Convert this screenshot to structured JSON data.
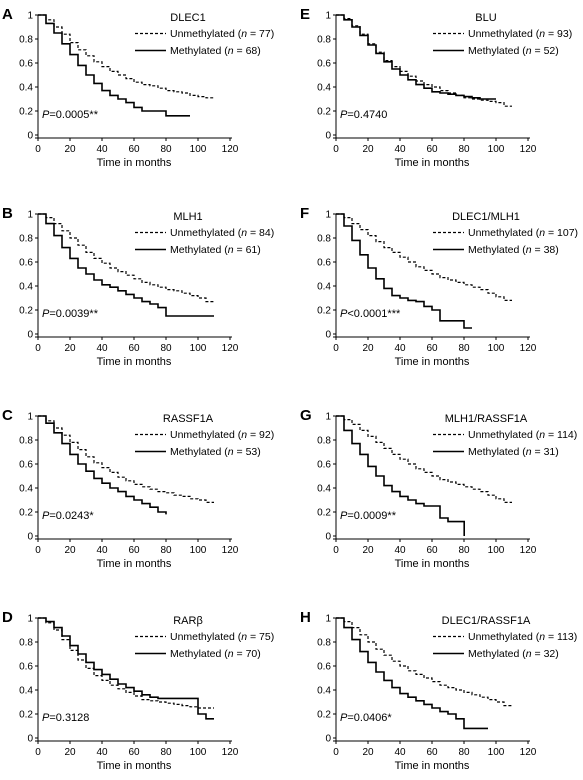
{
  "chart_data": [
    {
      "type": "line",
      "panel": "A",
      "gene": "DLEC1",
      "xlabel": "Time in months",
      "ylabel": "",
      "xlim": [
        0,
        120
      ],
      "ylim": [
        0,
        1
      ],
      "xticks": [
        "0",
        "20",
        "40",
        "60",
        "80",
        "100",
        "120"
      ],
      "yticks": [
        "0",
        "0.2",
        "0.4",
        "0.6",
        "0.8",
        "1"
      ],
      "legend": "top-right",
      "series": [
        {
          "name": "Unmethylated",
          "n": "77",
          "style": "dashed",
          "x": [
            0,
            5,
            10,
            15,
            20,
            25,
            30,
            35,
            40,
            45,
            50,
            55,
            60,
            65,
            70,
            75,
            80,
            85,
            90,
            95,
            100,
            105,
            110
          ],
          "y": [
            1,
            0.96,
            0.9,
            0.84,
            0.77,
            0.71,
            0.66,
            0.61,
            0.57,
            0.53,
            0.5,
            0.47,
            0.44,
            0.42,
            0.41,
            0.39,
            0.37,
            0.36,
            0.35,
            0.33,
            0.32,
            0.31,
            0.31
          ]
        },
        {
          "name": "Methylated",
          "n": "68",
          "style": "solid",
          "x": [
            0,
            5,
            10,
            15,
            20,
            25,
            30,
            35,
            40,
            45,
            50,
            55,
            60,
            65,
            70,
            75,
            80,
            85,
            90,
            95
          ],
          "y": [
            1,
            0.93,
            0.85,
            0.76,
            0.67,
            0.58,
            0.5,
            0.43,
            0.37,
            0.33,
            0.3,
            0.27,
            0.23,
            0.2,
            0.2,
            0.2,
            0.16,
            0.16,
            0.16,
            0.16
          ]
        }
      ],
      "pvalue": {
        "prefix": "P",
        "rest": "=0.0005**"
      }
    },
    {
      "type": "line",
      "panel": "B",
      "gene": "MLH1",
      "xlabel": "Time in months",
      "ylabel": "",
      "xlim": [
        0,
        120
      ],
      "ylim": [
        0,
        1
      ],
      "xticks": [
        "0",
        "20",
        "40",
        "60",
        "80",
        "100",
        "120"
      ],
      "yticks": [
        "0",
        "0.2",
        "0.4",
        "0.6",
        "0.8",
        "1"
      ],
      "legend": "top-right",
      "series": [
        {
          "name": "Unmethylated",
          "n": "84",
          "style": "dashed",
          "x": [
            0,
            5,
            10,
            15,
            20,
            25,
            30,
            35,
            40,
            45,
            50,
            55,
            60,
            65,
            70,
            75,
            80,
            85,
            90,
            95,
            100,
            105,
            110
          ],
          "y": [
            1,
            0.97,
            0.92,
            0.86,
            0.8,
            0.74,
            0.68,
            0.63,
            0.59,
            0.55,
            0.52,
            0.49,
            0.46,
            0.43,
            0.41,
            0.39,
            0.37,
            0.36,
            0.34,
            0.32,
            0.3,
            0.27,
            0.27
          ]
        },
        {
          "name": "Methylated",
          "n": "61",
          "style": "solid",
          "x": [
            0,
            5,
            10,
            15,
            20,
            25,
            30,
            35,
            40,
            45,
            50,
            55,
            60,
            65,
            70,
            75,
            80,
            85,
            90,
            95,
            100,
            105,
            110
          ],
          "y": [
            1,
            0.92,
            0.82,
            0.72,
            0.63,
            0.55,
            0.5,
            0.45,
            0.41,
            0.39,
            0.36,
            0.33,
            0.3,
            0.27,
            0.25,
            0.22,
            0.15,
            0.15,
            0.15,
            0.15,
            0.15,
            0.15,
            0.15
          ]
        }
      ],
      "pvalue": {
        "prefix": "P",
        "rest": "=0.0039**"
      }
    },
    {
      "type": "line",
      "panel": "C",
      "gene": "RASSF1A",
      "xlabel": "Time in months",
      "ylabel": "",
      "xlim": [
        0,
        120
      ],
      "ylim": [
        0,
        1
      ],
      "xticks": [
        "0",
        "20",
        "40",
        "60",
        "80",
        "100",
        "120"
      ],
      "yticks": [
        "0",
        "0.2",
        "0.4",
        "0.6",
        "0.8",
        "1"
      ],
      "legend": "top-right",
      "series": [
        {
          "name": "Unmethylated",
          "n": "92",
          "style": "dashed",
          "x": [
            0,
            5,
            10,
            15,
            20,
            25,
            30,
            35,
            40,
            45,
            50,
            55,
            60,
            65,
            70,
            75,
            80,
            85,
            90,
            95,
            100,
            105,
            110
          ],
          "y": [
            1,
            0.96,
            0.9,
            0.84,
            0.78,
            0.72,
            0.66,
            0.61,
            0.57,
            0.53,
            0.49,
            0.46,
            0.43,
            0.41,
            0.39,
            0.37,
            0.36,
            0.34,
            0.33,
            0.31,
            0.3,
            0.28,
            0.28
          ]
        },
        {
          "name": "Methylated",
          "n": "53",
          "style": "solid",
          "x": [
            0,
            5,
            10,
            15,
            20,
            25,
            30,
            35,
            40,
            45,
            50,
            55,
            60,
            65,
            70,
            75,
            80
          ],
          "y": [
            1,
            0.94,
            0.86,
            0.77,
            0.68,
            0.6,
            0.54,
            0.48,
            0.44,
            0.4,
            0.37,
            0.33,
            0.3,
            0.27,
            0.24,
            0.2,
            0.18
          ]
        }
      ],
      "pvalue": {
        "prefix": "P",
        "rest": "=0.0243*"
      }
    },
    {
      "type": "line",
      "panel": "D",
      "gene": "RARβ",
      "xlabel": "Time in months",
      "ylabel": "",
      "xlim": [
        0,
        120
      ],
      "ylim": [
        0,
        1
      ],
      "xticks": [
        "0",
        "20",
        "40",
        "60",
        "80",
        "100",
        "120"
      ],
      "yticks": [
        "0",
        "0.2",
        "0.4",
        "0.6",
        "0.8",
        "1"
      ],
      "legend": "top-right",
      "series": [
        {
          "name": "Unmethylated",
          "n": "75",
          "style": "dashed",
          "x": [
            0,
            5,
            10,
            15,
            20,
            25,
            30,
            35,
            40,
            45,
            50,
            55,
            60,
            65,
            70,
            75,
            80,
            85,
            90,
            95,
            100,
            105,
            110
          ],
          "y": [
            1,
            0.96,
            0.9,
            0.82,
            0.73,
            0.65,
            0.58,
            0.52,
            0.48,
            0.44,
            0.41,
            0.38,
            0.35,
            0.32,
            0.31,
            0.3,
            0.29,
            0.28,
            0.27,
            0.26,
            0.25,
            0.25,
            0.25
          ]
        },
        {
          "name": "Methylated",
          "n": "70",
          "style": "solid",
          "x": [
            0,
            5,
            10,
            15,
            20,
            25,
            30,
            35,
            40,
            45,
            50,
            55,
            60,
            65,
            70,
            75,
            80,
            85,
            90,
            95,
            100,
            105,
            110
          ],
          "y": [
            1,
            0.97,
            0.92,
            0.85,
            0.77,
            0.7,
            0.63,
            0.57,
            0.53,
            0.49,
            0.45,
            0.42,
            0.39,
            0.36,
            0.34,
            0.33,
            0.33,
            0.33,
            0.33,
            0.33,
            0.2,
            0.16,
            0.16
          ]
        }
      ],
      "pvalue": {
        "prefix": "P",
        "rest": "=0.3128"
      }
    },
    {
      "type": "line",
      "panel": "E",
      "gene": "BLU",
      "xlabel": "Time in months",
      "ylabel": "",
      "xlim": [
        0,
        120
      ],
      "ylim": [
        0,
        1
      ],
      "xticks": [
        "0",
        "20",
        "40",
        "60",
        "80",
        "100",
        "120"
      ],
      "yticks": [
        "0",
        "0.2",
        "0.4",
        "0.6",
        "0.8",
        "1"
      ],
      "legend": "top-right",
      "series": [
        {
          "name": "Unmethylated",
          "n": "93",
          "style": "dashed",
          "x": [
            0,
            5,
            10,
            15,
            20,
            25,
            30,
            35,
            40,
            45,
            50,
            55,
            60,
            65,
            70,
            75,
            80,
            85,
            90,
            95,
            100,
            105,
            110
          ],
          "y": [
            1,
            0.97,
            0.91,
            0.84,
            0.76,
            0.69,
            0.62,
            0.57,
            0.53,
            0.49,
            0.45,
            0.42,
            0.4,
            0.37,
            0.35,
            0.33,
            0.31,
            0.3,
            0.29,
            0.28,
            0.27,
            0.24,
            0.24
          ]
        },
        {
          "name": "Methylated",
          "n": "52",
          "style": "solid",
          "x": [
            0,
            5,
            10,
            15,
            20,
            25,
            30,
            35,
            40,
            45,
            50,
            55,
            60,
            65,
            70,
            75,
            80,
            85,
            90,
            95,
            100
          ],
          "y": [
            1,
            0.96,
            0.9,
            0.83,
            0.75,
            0.68,
            0.61,
            0.55,
            0.5,
            0.46,
            0.42,
            0.39,
            0.36,
            0.35,
            0.34,
            0.33,
            0.32,
            0.31,
            0.3,
            0.3,
            0.3
          ]
        }
      ],
      "pvalue": {
        "prefix": "P",
        "rest": "=0.4740"
      }
    },
    {
      "type": "line",
      "panel": "F",
      "gene": "DLEC1/MLH1",
      "xlabel": "Time in months",
      "ylabel": "",
      "xlim": [
        0,
        120
      ],
      "ylim": [
        0,
        1
      ],
      "xticks": [
        "0",
        "20",
        "40",
        "60",
        "80",
        "100",
        "120"
      ],
      "yticks": [
        "0",
        "0.2",
        "0.4",
        "0.6",
        "0.8",
        "1"
      ],
      "legend": "top-right",
      "series": [
        {
          "name": "Unmethylated",
          "n": "107",
          "style": "dashed",
          "x": [
            0,
            5,
            10,
            15,
            20,
            25,
            30,
            35,
            40,
            45,
            50,
            55,
            60,
            65,
            70,
            75,
            80,
            85,
            90,
            95,
            100,
            105,
            110
          ],
          "y": [
            1,
            0.97,
            0.92,
            0.87,
            0.82,
            0.77,
            0.72,
            0.68,
            0.64,
            0.6,
            0.56,
            0.53,
            0.5,
            0.47,
            0.45,
            0.43,
            0.41,
            0.39,
            0.37,
            0.34,
            0.31,
            0.28,
            0.28
          ]
        },
        {
          "name": "Methylated",
          "n": "38",
          "style": "solid",
          "x": [
            0,
            5,
            10,
            15,
            20,
            25,
            30,
            35,
            40,
            45,
            50,
            55,
            60,
            65,
            70,
            75,
            80,
            85
          ],
          "y": [
            1,
            0.9,
            0.78,
            0.66,
            0.55,
            0.46,
            0.38,
            0.32,
            0.3,
            0.28,
            0.27,
            0.23,
            0.2,
            0.11,
            0.11,
            0.11,
            0.05,
            0.05
          ]
        }
      ],
      "pvalue": {
        "prefix": "P",
        "rest": "<0.0001***"
      }
    },
    {
      "type": "line",
      "panel": "G",
      "gene": "MLH1/RASSF1A",
      "xlabel": "Time in months",
      "ylabel": "",
      "xlim": [
        0,
        120
      ],
      "ylim": [
        0,
        1
      ],
      "xticks": [
        "0",
        "20",
        "40",
        "60",
        "80",
        "100",
        "120"
      ],
      "yticks": [
        "0",
        "0.2",
        "0.4",
        "0.6",
        "0.8",
        "1"
      ],
      "legend": "top-right",
      "series": [
        {
          "name": "Unmethylated",
          "n": "114",
          "style": "dashed",
          "x": [
            0,
            5,
            10,
            15,
            20,
            25,
            30,
            35,
            40,
            45,
            50,
            55,
            60,
            65,
            70,
            75,
            80,
            85,
            90,
            95,
            100,
            105,
            110
          ],
          "y": [
            1,
            0.97,
            0.93,
            0.88,
            0.83,
            0.78,
            0.73,
            0.68,
            0.64,
            0.6,
            0.56,
            0.53,
            0.5,
            0.47,
            0.45,
            0.43,
            0.41,
            0.39,
            0.37,
            0.34,
            0.31,
            0.28,
            0.28
          ]
        },
        {
          "name": "Methylated",
          "n": "31",
          "style": "solid",
          "x": [
            0,
            5,
            10,
            15,
            20,
            25,
            30,
            35,
            40,
            45,
            50,
            55,
            60,
            65,
            70,
            75,
            80,
            80.1
          ],
          "y": [
            1,
            0.88,
            0.77,
            0.68,
            0.58,
            0.5,
            0.42,
            0.37,
            0.33,
            0.3,
            0.27,
            0.25,
            0.25,
            0.15,
            0.12,
            0.12,
            0.12,
            0
          ]
        }
      ],
      "pvalue": {
        "prefix": "P",
        "rest": "=0.0009**"
      }
    },
    {
      "type": "line",
      "panel": "H",
      "gene": "DLEC1/RASSF1A",
      "xlabel": "Time in months",
      "ylabel": "",
      "xlim": [
        0,
        120
      ],
      "ylim": [
        0,
        1
      ],
      "xticks": [
        "0",
        "20",
        "40",
        "60",
        "80",
        "100",
        "120"
      ],
      "yticks": [
        "0",
        "0.2",
        "0.4",
        "0.6",
        "0.8",
        "1"
      ],
      "legend": "top-right",
      "series": [
        {
          "name": "Unmethylated",
          "n": "113",
          "style": "dashed",
          "x": [
            0,
            5,
            10,
            15,
            20,
            25,
            30,
            35,
            40,
            45,
            50,
            55,
            60,
            65,
            70,
            75,
            80,
            85,
            90,
            95,
            100,
            105,
            110
          ],
          "y": [
            1,
            0.97,
            0.92,
            0.86,
            0.8,
            0.74,
            0.69,
            0.64,
            0.6,
            0.56,
            0.53,
            0.5,
            0.47,
            0.44,
            0.42,
            0.4,
            0.38,
            0.36,
            0.34,
            0.32,
            0.3,
            0.27,
            0.27
          ]
        },
        {
          "name": "Methylated",
          "n": "32",
          "style": "solid",
          "x": [
            0,
            5,
            10,
            15,
            20,
            25,
            30,
            35,
            40,
            45,
            50,
            55,
            60,
            65,
            70,
            75,
            80,
            85,
            90,
            95
          ],
          "y": [
            1,
            0.92,
            0.82,
            0.72,
            0.63,
            0.55,
            0.48,
            0.42,
            0.37,
            0.34,
            0.31,
            0.28,
            0.25,
            0.22,
            0.2,
            0.16,
            0.08,
            0.08,
            0.08,
            0.08
          ]
        }
      ],
      "pvalue": {
        "prefix": "P",
        "rest": "=0.0406*"
      }
    }
  ]
}
